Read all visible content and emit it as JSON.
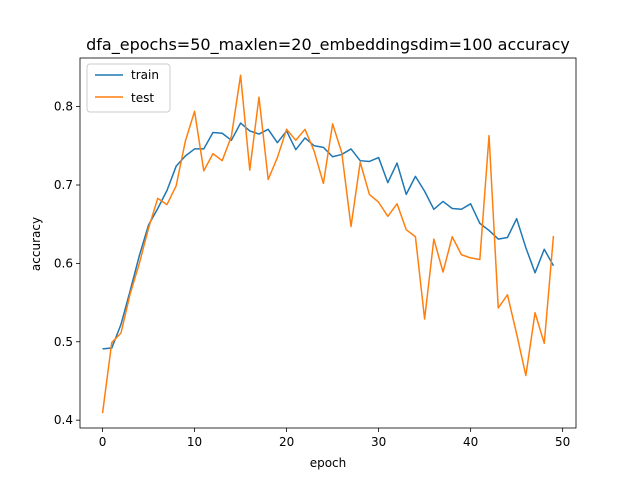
{
  "colors": {
    "train": "#1f77b4",
    "test": "#ff7f0e",
    "axes": "#000000",
    "background": "#ffffff",
    "legend_border": "#cccccc"
  },
  "chart_data": {
    "type": "line",
    "title": "dfa_epochs=50_maxlen=20_embeddingsdim=100 accuracy",
    "xlabel": "epoch",
    "ylabel": "accuracy",
    "xlim": [
      -2.45,
      51.45
    ],
    "ylim": [
      0.39,
      0.862
    ],
    "xticks": [
      0,
      10,
      20,
      30,
      40,
      50
    ],
    "yticks": [
      0.4,
      0.5,
      0.6,
      0.7,
      0.8
    ],
    "xtick_labels": [
      "0",
      "10",
      "20",
      "30",
      "40",
      "50"
    ],
    "ytick_labels": [
      "0.4",
      "0.5",
      "0.6",
      "0.7",
      "0.8"
    ],
    "grid": false,
    "legend_position": "upper left",
    "x": [
      0,
      1,
      2,
      3,
      4,
      5,
      6,
      7,
      8,
      9,
      10,
      11,
      12,
      13,
      14,
      15,
      16,
      17,
      18,
      19,
      20,
      21,
      22,
      23,
      24,
      25,
      26,
      27,
      28,
      29,
      30,
      31,
      32,
      33,
      34,
      35,
      36,
      37,
      38,
      39,
      40,
      41,
      42,
      43,
      44,
      45,
      46,
      47,
      48,
      49
    ],
    "series": [
      {
        "name": "train",
        "color": "#1f77b4",
        "values": [
          0.491,
          0.492,
          0.522,
          0.565,
          0.61,
          0.649,
          0.67,
          0.693,
          0.724,
          0.737,
          0.746,
          0.746,
          0.767,
          0.766,
          0.757,
          0.779,
          0.769,
          0.765,
          0.771,
          0.754,
          0.769,
          0.745,
          0.76,
          0.75,
          0.748,
          0.736,
          0.739,
          0.746,
          0.731,
          0.73,
          0.735,
          0.703,
          0.728,
          0.688,
          0.711,
          0.692,
          0.669,
          0.679,
          0.67,
          0.669,
          0.676,
          0.651,
          0.642,
          0.631,
          0.633,
          0.657,
          0.62,
          0.588,
          0.618,
          0.597
        ]
      },
      {
        "name": "test",
        "color": "#ff7f0e",
        "values": [
          0.409,
          0.499,
          0.511,
          0.561,
          0.6,
          0.645,
          0.683,
          0.675,
          0.699,
          0.756,
          0.794,
          0.718,
          0.74,
          0.731,
          0.762,
          0.84,
          0.719,
          0.812,
          0.707,
          0.735,
          0.771,
          0.757,
          0.771,
          0.743,
          0.702,
          0.778,
          0.741,
          0.647,
          0.729,
          0.688,
          0.678,
          0.66,
          0.676,
          0.643,
          0.634,
          0.529,
          0.631,
          0.589,
          0.634,
          0.611,
          0.607,
          0.605,
          0.763,
          0.543,
          0.56,
          0.51,
          0.457,
          0.537,
          0.498,
          0.635
        ]
      }
    ]
  }
}
